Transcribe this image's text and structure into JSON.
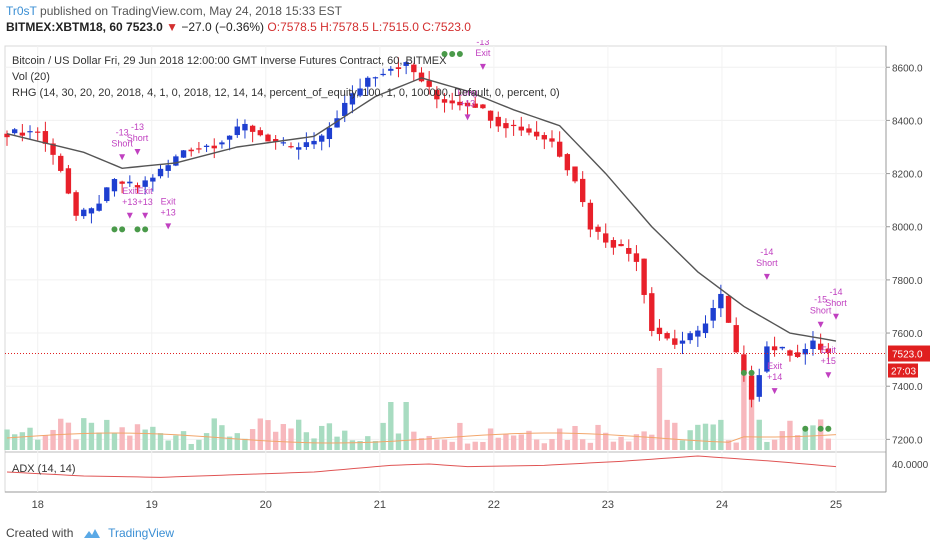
{
  "header": {
    "author": "Tr0sT",
    "published_text": "published on TradingView.com, May 24, 2018 15:33 EST",
    "symbol": "BITMEX:XBTM18, 60",
    "last_price": "7523.0",
    "change": "−27.0 (−0.36%)",
    "open": "O:7578.5",
    "high": "H:7578.5",
    "low": "L:7515.0",
    "close": "C:7523.0"
  },
  "legend": {
    "main": "Bitcoin / US Dollar Fri, 29 Jun 2018 12:00:00 GMT Inverse Futures Contract, 60, BITMEX",
    "vol": "Vol (20)",
    "strategy": "RHG (14, 30, 20, 20, 2018, 4, 1, 0, 2018, 12, 14, 14, percent_of_equity, 100, 1, 0, 100000, Default, 0, percent, 0)",
    "adx": "ADX (14, 14)"
  },
  "footer": {
    "created_with": "Created with",
    "brand": "TradingView"
  },
  "colors": {
    "up": "#1e3fd0",
    "down": "#e8202a",
    "ma": "#555555",
    "vol_up": "#a8dcc1",
    "vol_down": "#f7b8bd",
    "vol_ma": "#f2a66b",
    "adx": "#e05555",
    "signal": "#c040c0",
    "dot": "#4a9a4a",
    "price_tag": "#e01f1f"
  },
  "chart_data": {
    "type": "candlestick",
    "x_labels": [
      "18",
      "19",
      "20",
      "21",
      "22",
      "23",
      "24",
      "25"
    ],
    "y_ticks": [
      7200,
      7400,
      7600,
      7800,
      8000,
      8200,
      8400,
      8600
    ],
    "y_tick_labels": [
      "7200.0",
      "7400.0",
      "7600.0",
      "7800.0",
      "8000.0",
      "8200.0",
      "8400.0",
      "8600.0"
    ],
    "ylim": [
      7160,
      8680
    ],
    "last_price_label": "7523.0",
    "countdown_label": "27:03",
    "adx_tick_label": "40.0000",
    "close_path": [
      [
        0,
        8350
      ],
      [
        5,
        8360
      ],
      [
        8,
        8220
      ],
      [
        10,
        8040
      ],
      [
        12,
        8060
      ],
      [
        15,
        8170
      ],
      [
        18,
        8150
      ],
      [
        22,
        8230
      ],
      [
        24,
        8290
      ],
      [
        28,
        8310
      ],
      [
        32,
        8380
      ],
      [
        35,
        8330
      ],
      [
        38,
        8290
      ],
      [
        42,
        8330
      ],
      [
        45,
        8460
      ],
      [
        48,
        8560
      ],
      [
        51,
        8600
      ],
      [
        53,
        8610
      ],
      [
        55,
        8550
      ],
      [
        57,
        8480
      ],
      [
        59,
        8470
      ],
      [
        62,
        8460
      ],
      [
        65,
        8390
      ],
      [
        68,
        8370
      ],
      [
        72,
        8320
      ],
      [
        75,
        8180
      ],
      [
        77,
        8000
      ],
      [
        79,
        7950
      ],
      [
        81,
        7920
      ],
      [
        83,
        7880
      ],
      [
        85,
        7620
      ],
      [
        88,
        7560
      ],
      [
        91,
        7600
      ],
      [
        94,
        7740
      ],
      [
        96,
        7520
      ],
      [
        98,
        7360
      ],
      [
        100,
        7550
      ],
      [
        104,
        7520
      ],
      [
        106,
        7560
      ],
      [
        108,
        7523
      ]
    ],
    "ma_path": [
      [
        0,
        8350
      ],
      [
        10,
        8280
      ],
      [
        15,
        8220
      ],
      [
        22,
        8240
      ],
      [
        30,
        8300
      ],
      [
        40,
        8340
      ],
      [
        48,
        8490
      ],
      [
        54,
        8560
      ],
      [
        60,
        8510
      ],
      [
        66,
        8440
      ],
      [
        72,
        8380
      ],
      [
        78,
        8200
      ],
      [
        84,
        8000
      ],
      [
        90,
        7830
      ],
      [
        96,
        7700
      ],
      [
        102,
        7600
      ],
      [
        108,
        7570
      ]
    ],
    "adx_path": [
      [
        0,
        30
      ],
      [
        10,
        27
      ],
      [
        20,
        26
      ],
      [
        30,
        28
      ],
      [
        40,
        30
      ],
      [
        50,
        35
      ],
      [
        55,
        36
      ],
      [
        60,
        34
      ],
      [
        70,
        35
      ],
      [
        80,
        38
      ],
      [
        90,
        42
      ],
      [
        95,
        40
      ],
      [
        100,
        38
      ],
      [
        108,
        34
      ]
    ],
    "adx_ylim": [
      15,
      45
    ],
    "bar_count": 108,
    "signals": [
      {
        "i": 15,
        "price": 8250,
        "labels": [
          "-13",
          "Short"
        ]
      },
      {
        "i": 17,
        "price": 8270,
        "labels": [
          "-13",
          "Short"
        ]
      },
      {
        "i": 16,
        "price": 8030,
        "labels": [
          "Exit",
          "+13"
        ]
      },
      {
        "i": 18,
        "price": 8030,
        "labels": [
          "Exit",
          "+13"
        ]
      },
      {
        "i": 21,
        "price": 7990,
        "labels": [
          "Exit",
          "+13"
        ]
      },
      {
        "i": 62,
        "price": 8590,
        "labels": [
          "-13",
          "Exit"
        ]
      },
      {
        "i": 60,
        "price": 8400,
        "labels": [
          "Long",
          "+13"
        ]
      },
      {
        "i": 99,
        "price": 7800,
        "labels": [
          "-14",
          "Short"
        ]
      },
      {
        "i": 100,
        "price": 7370,
        "labels": [
          "Exit",
          "+14"
        ]
      },
      {
        "i": 106,
        "price": 7620,
        "labels": [
          "-15",
          "Short"
        ]
      },
      {
        "i": 107,
        "price": 7430,
        "labels": [
          "Exit",
          "+15"
        ]
      },
      {
        "i": 108,
        "price": 7650,
        "labels": [
          "-14",
          "Short"
        ]
      }
    ]
  }
}
